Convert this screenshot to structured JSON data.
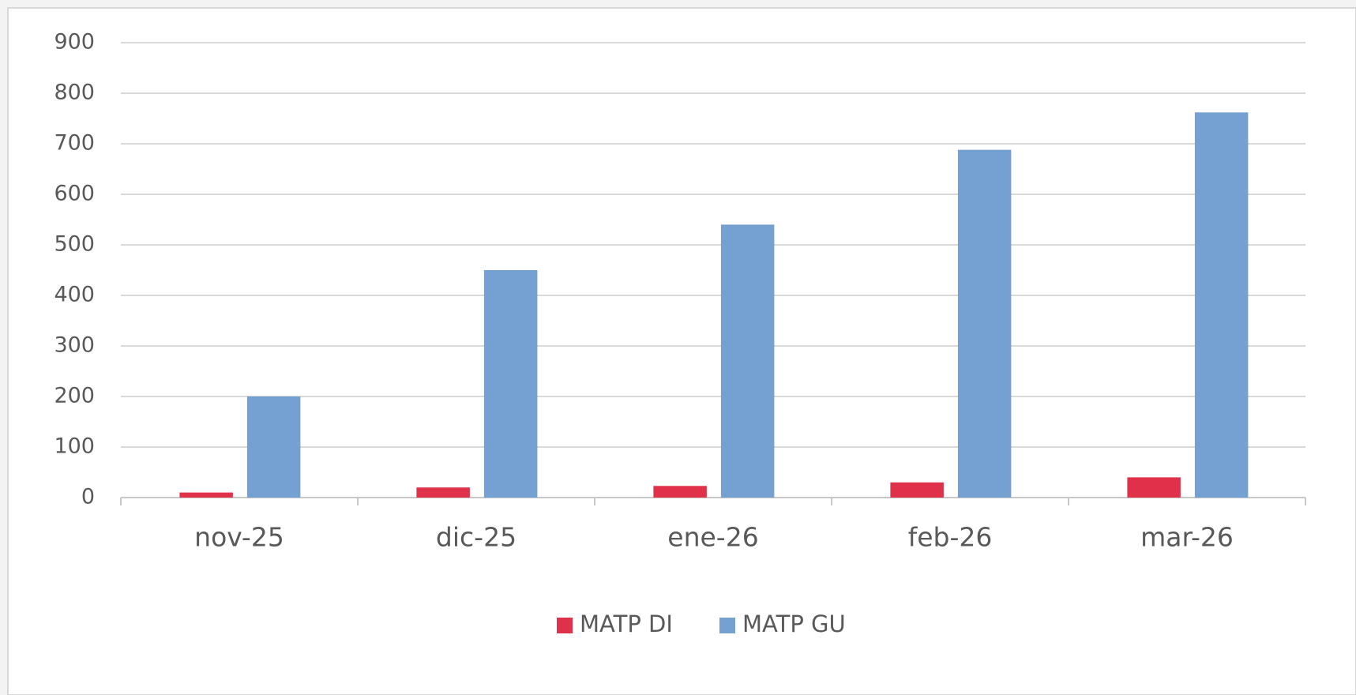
{
  "chart_data": {
    "type": "bar",
    "categories": [
      "nov-25",
      "dic-25",
      "ene-26",
      "feb-26",
      "mar-26"
    ],
    "series": [
      {
        "name": "MATP DI",
        "color": "#e0314b",
        "values": [
          10,
          20,
          23,
          30,
          40
        ]
      },
      {
        "name": "MATP GU",
        "color": "#75a1d2",
        "values": [
          200,
          450,
          540,
          688,
          762
        ]
      }
    ],
    "ylim": [
      0,
      900
    ],
    "yticks": [
      0,
      100,
      200,
      300,
      400,
      500,
      600,
      700,
      800,
      900
    ],
    "grid": true,
    "legend": "bottom"
  }
}
